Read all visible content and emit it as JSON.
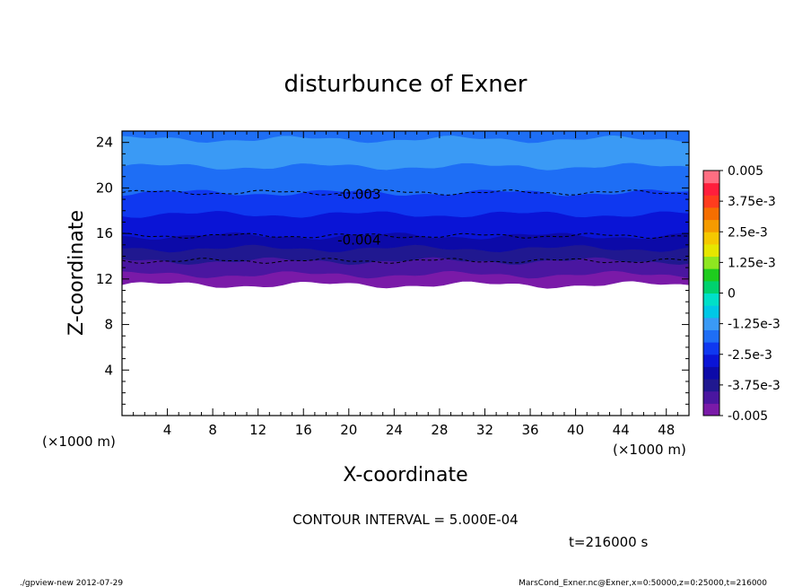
{
  "figure": {
    "title": "disturbunce of Exner",
    "contour_interval": "CONTOUR INTERVAL = 5.000E-04",
    "time_label": "t=216000 s",
    "footer_left": "./gpview-new   2012-07-29",
    "footer_right": "MarsCond_Exner.nc@Exner,x=0:50000,z=0:25000,t=216000"
  },
  "chart_data": {
    "type": "heatmap",
    "title": "disturbunce of Exner",
    "xlabel": "X-coordinate",
    "ylabel": "Z-coordinate",
    "x_unit": "(×1000 m)",
    "y_unit": "(×1000 m)",
    "xlim": [
      0,
      50
    ],
    "ylim": [
      0,
      25
    ],
    "x_ticks": [
      "4",
      "8",
      "12",
      "16",
      "20",
      "24",
      "28",
      "32",
      "36",
      "40",
      "44",
      "48"
    ],
    "y_ticks": [
      "4",
      "8",
      "12",
      "16",
      "20",
      "24"
    ],
    "contour_labels": [
      {
        "text": "-0.003",
        "x": 19,
        "z": 19.5
      },
      {
        "text": "-0.004",
        "x": 19,
        "z": 15.5
      }
    ],
    "contour_lines_z": [
      19.6,
      15.8,
      13.6
    ],
    "missing_below_z": 11.5,
    "bands": [
      {
        "z_bottom": 11.5,
        "z_top": 12.4,
        "color": "#7a1aa8"
      },
      {
        "z_bottom": 12.4,
        "z_top": 13.6,
        "color": "#4a16a0"
      },
      {
        "z_bottom": 13.6,
        "z_top": 14.7,
        "color": "#201890"
      },
      {
        "z_bottom": 14.7,
        "z_top": 15.8,
        "color": "#0c0aa8"
      },
      {
        "z_bottom": 15.8,
        "z_top": 17.7,
        "color": "#0a14d6"
      },
      {
        "z_bottom": 17.7,
        "z_top": 19.6,
        "color": "#0f38f0"
      },
      {
        "z_bottom": 19.6,
        "z_top": 21.9,
        "color": "#1e6ef5"
      },
      {
        "z_bottom": 21.9,
        "z_top": 24.3,
        "color": "#3a9af5"
      },
      {
        "z_bottom": 24.3,
        "z_top": 25.0,
        "color": "#1e6ef5"
      }
    ],
    "colorbar": {
      "min": -0.005,
      "max": 0.005,
      "labels": [
        "0.005",
        "3.75e-3",
        "2.5e-3",
        "1.25e-3",
        "0",
        "-1.25e-3",
        "-2.5e-3",
        "-3.75e-3",
        "-0.005"
      ],
      "colors": [
        "#7a1aa8",
        "#4a16a0",
        "#201890",
        "#0c0aa8",
        "#0a14d6",
        "#0f38f0",
        "#1e6ef5",
        "#3a9af5",
        "#00c8e6",
        "#00e0c8",
        "#00d26e",
        "#1ecc1e",
        "#8ee620",
        "#e6e600",
        "#f5c800",
        "#f59b00",
        "#f56e00",
        "#ff3c1e",
        "#ff1e3c",
        "#ff6e82"
      ]
    }
  }
}
